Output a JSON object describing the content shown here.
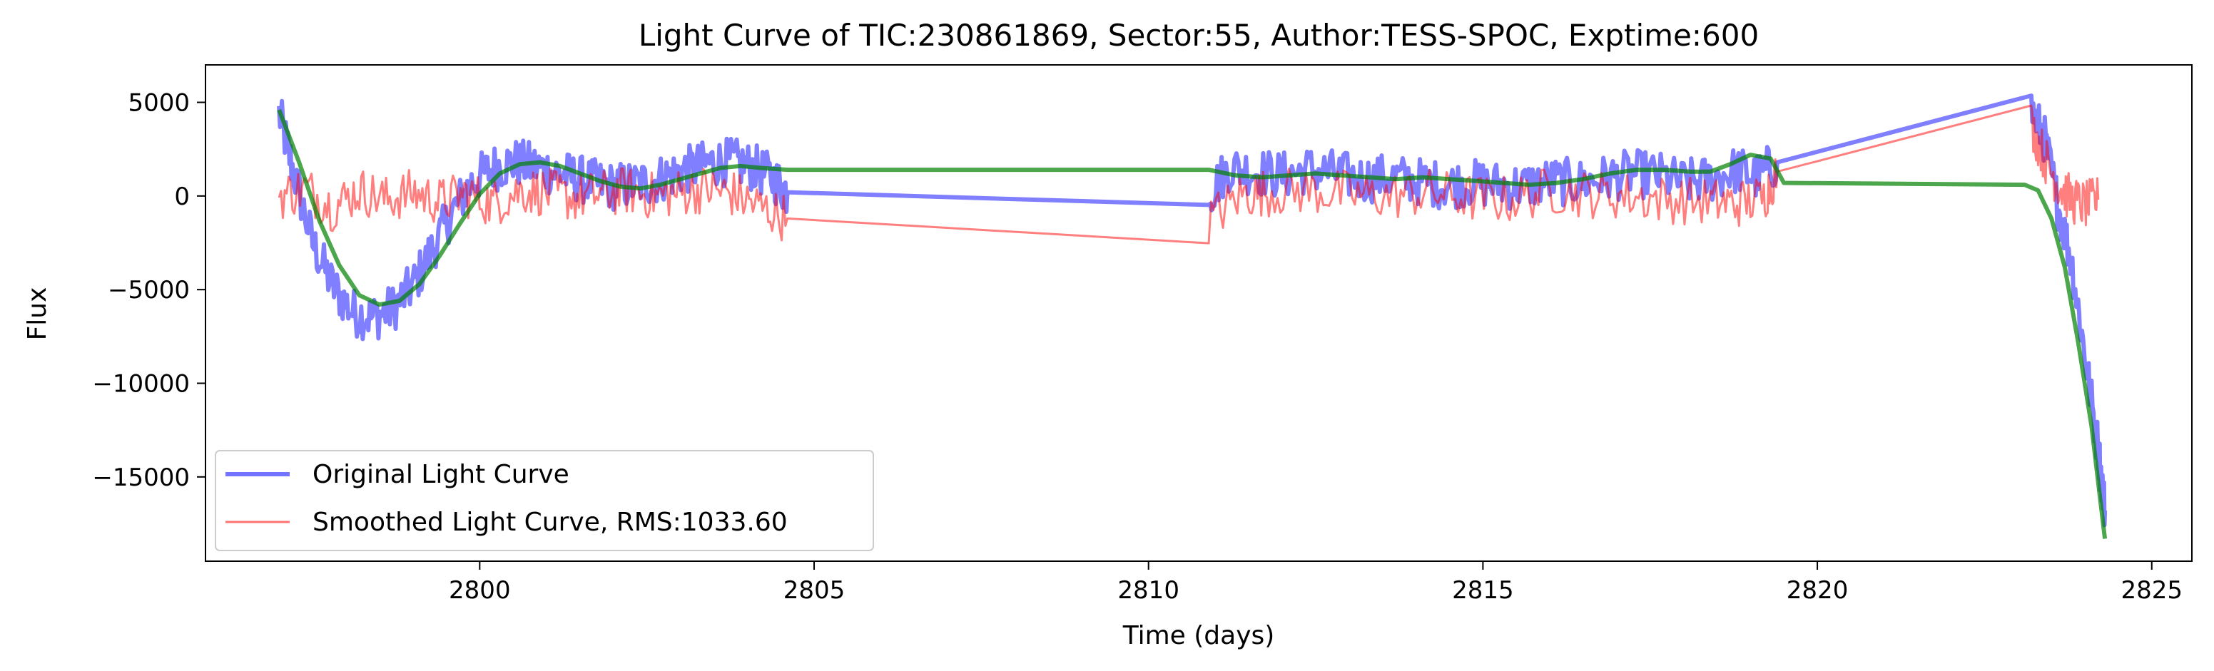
{
  "chart_data": {
    "type": "line",
    "title": "Light Curve of TIC:230861869, Sector:55, Author:TESS-SPOC, Exptime:600",
    "xlabel": "Time (days)",
    "ylabel": "Flux",
    "xlim": [
      2795.9,
      2825.6
    ],
    "ylim": [
      -19500,
      7000
    ],
    "xticks": [
      2800,
      2805,
      2810,
      2815,
      2820,
      2825
    ],
    "yticks": [
      5000,
      0,
      -5000,
      -10000,
      -15000
    ],
    "grid": false,
    "legend_placement": "lower-left",
    "colors": {
      "original": "#0000ff",
      "smoothed": "#ff0000",
      "trend": "#008000"
    },
    "series": [
      {
        "name": "Original Light Curve",
        "x": [
          2797.0,
          2797.2,
          2797.5,
          2797.8,
          2798.1,
          2798.4,
          2798.7,
          2799.0,
          2799.3,
          2799.6,
          2799.9,
          2800.2,
          2800.5,
          2800.8,
          2801.1,
          2801.4,
          2801.7,
          2802.0,
          2802.3,
          2802.6,
          2802.9,
          2803.2,
          2803.5,
          2803.8,
          2804.1,
          2804.4,
          2804.6,
          2810.9,
          2811.2,
          2811.6,
          2812.0,
          2812.4,
          2812.8,
          2813.2,
          2813.6,
          2814.0,
          2814.4,
          2814.8,
          2815.2,
          2815.6,
          2816.0,
          2816.4,
          2816.8,
          2817.2,
          2817.6,
          2818.0,
          2818.4,
          2818.8,
          2819.1,
          2819.4,
          2823.2,
          2823.4,
          2823.6,
          2823.8,
          2824.0,
          2824.2,
          2824.3
        ],
        "y": [
          4400,
          1500,
          -2500,
          -4800,
          -6200,
          -6500,
          -6000,
          -4800,
          -2800,
          -800,
          800,
          1500,
          1800,
          1600,
          1300,
          1000,
          700,
          500,
          600,
          800,
          1200,
          1500,
          1800,
          1800,
          1500,
          900,
          200,
          100,
          1500,
          1300,
          1100,
          1400,
          1200,
          900,
          1000,
          800,
          600,
          700,
          600,
          500,
          800,
          700,
          900,
          1200,
          1100,
          700,
          900,
          1400,
          1000,
          1800,
          4600,
          3000,
          -500,
          -3500,
          -8500,
          -13500,
          -16800
        ],
        "noise": 1300
      },
      {
        "name": "Smoothed Light Curve, RMS:1033.60",
        "x": [
          2797.0,
          2797.4,
          2797.8,
          2798.2,
          2798.6,
          2799.0,
          2799.4,
          2799.8,
          2800.2,
          2800.6,
          2801.0,
          2801.4,
          2801.8,
          2802.2,
          2802.6,
          2803.0,
          2803.4,
          2803.8,
          2804.2,
          2804.6,
          2810.9,
          2811.4,
          2811.8,
          2812.4,
          2813.0,
          2813.6,
          2814.2,
          2814.8,
          2815.4,
          2816.0,
          2816.6,
          2817.2,
          2817.8,
          2818.4,
          2818.8,
          2819.2,
          2819.4,
          2823.2,
          2823.4,
          2823.6,
          2823.8,
          2824.0,
          2824.2
        ],
        "y": [
          0,
          400,
          -600,
          300,
          -200,
          200,
          -300,
          100,
          -400,
          300,
          200,
          -100,
          100,
          300,
          0,
          200,
          400,
          100,
          -600,
          -1200,
          -1300,
          100,
          200,
          300,
          100,
          0,
          200,
          -100,
          -200,
          300,
          100,
          0,
          -200,
          -300,
          -400,
          -100,
          1300,
          3800,
          2000,
          600,
          -200,
          -500,
          -200
        ],
        "noise": 1300
      },
      {
        "name": "",
        "x": [
          2797.0,
          2797.3,
          2797.6,
          2797.9,
          2798.2,
          2798.5,
          2798.8,
          2799.1,
          2799.4,
          2799.7,
          2800.0,
          2800.3,
          2800.6,
          2800.9,
          2801.2,
          2801.5,
          2801.8,
          2802.1,
          2802.4,
          2802.7,
          2803.0,
          2803.3,
          2803.6,
          2803.9,
          2804.2,
          2804.6,
          2810.9,
          2811.3,
          2811.7,
          2812.1,
          2812.5,
          2812.9,
          2813.3,
          2813.7,
          2814.1,
          2814.5,
          2814.9,
          2815.3,
          2815.7,
          2816.1,
          2816.5,
          2816.9,
          2817.3,
          2817.7,
          2818.1,
          2818.4,
          2818.7,
          2819.0,
          2819.3,
          2819.5,
          2823.1,
          2823.3,
          2823.5,
          2823.7,
          2823.9,
          2824.1,
          2824.3
        ],
        "y": [
          4600,
          1800,
          -1300,
          -3700,
          -5300,
          -5800,
          -5600,
          -4700,
          -3200,
          -1500,
          100,
          1200,
          1700,
          1800,
          1600,
          1200,
          800,
          500,
          400,
          600,
          900,
          1200,
          1500,
          1600,
          1500,
          1400,
          1400,
          1100,
          1000,
          1100,
          1200,
          1100,
          1000,
          900,
          1000,
          900,
          800,
          700,
          600,
          700,
          900,
          1200,
          1400,
          1400,
          1300,
          1300,
          1700,
          2200,
          2000,
          700,
          600,
          300,
          -1200,
          -3800,
          -7800,
          -12300,
          -18300
        ],
        "noise": 0
      }
    ]
  }
}
